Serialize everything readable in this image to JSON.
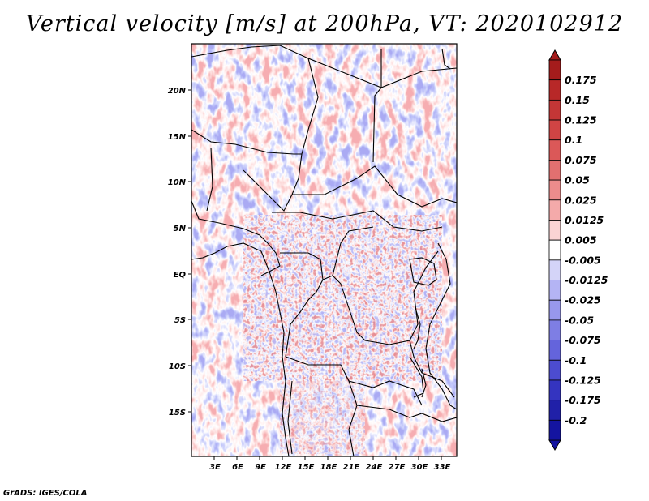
{
  "title": "Vertical velocity [m/s] at 200hPa, VT: 2020102912",
  "credit": "GrADS: IGES/COLA",
  "map": {
    "variable": "Vertical velocity",
    "units": "m/s",
    "level": "200hPa",
    "valid_time": "2020102912",
    "lat_labels": [
      "20N",
      "15N",
      "10N",
      "5N",
      "EQ",
      "5S",
      "10S",
      "15S"
    ],
    "lon_labels": [
      "3E",
      "6E",
      "9E",
      "12E",
      "15E",
      "18E",
      "21E",
      "24E",
      "27E",
      "30E",
      "33E"
    ]
  },
  "colorbar": {
    "labels": [
      "0.175",
      "0.15",
      "0.125",
      "0.1",
      "0.075",
      "0.05",
      "0.025",
      "0.0125",
      "0.005",
      "-0.005",
      "-0.0125",
      "-0.025",
      "-0.05",
      "-0.075",
      "-0.1",
      "-0.125",
      "-0.175",
      "-0.2"
    ],
    "colors": [
      "#a51c1c",
      "#b82828",
      "#c43636",
      "#d04444",
      "#db5858",
      "#e27070",
      "#ec8c8c",
      "#f4aaaa",
      "#fbd4d4",
      "#ffffff",
      "#d4d4f8",
      "#b4b4f4",
      "#9898ec",
      "#7e7ee4",
      "#6464dc",
      "#4c4cd0",
      "#3434c0",
      "#2020a8",
      "#1414a0"
    ]
  }
}
